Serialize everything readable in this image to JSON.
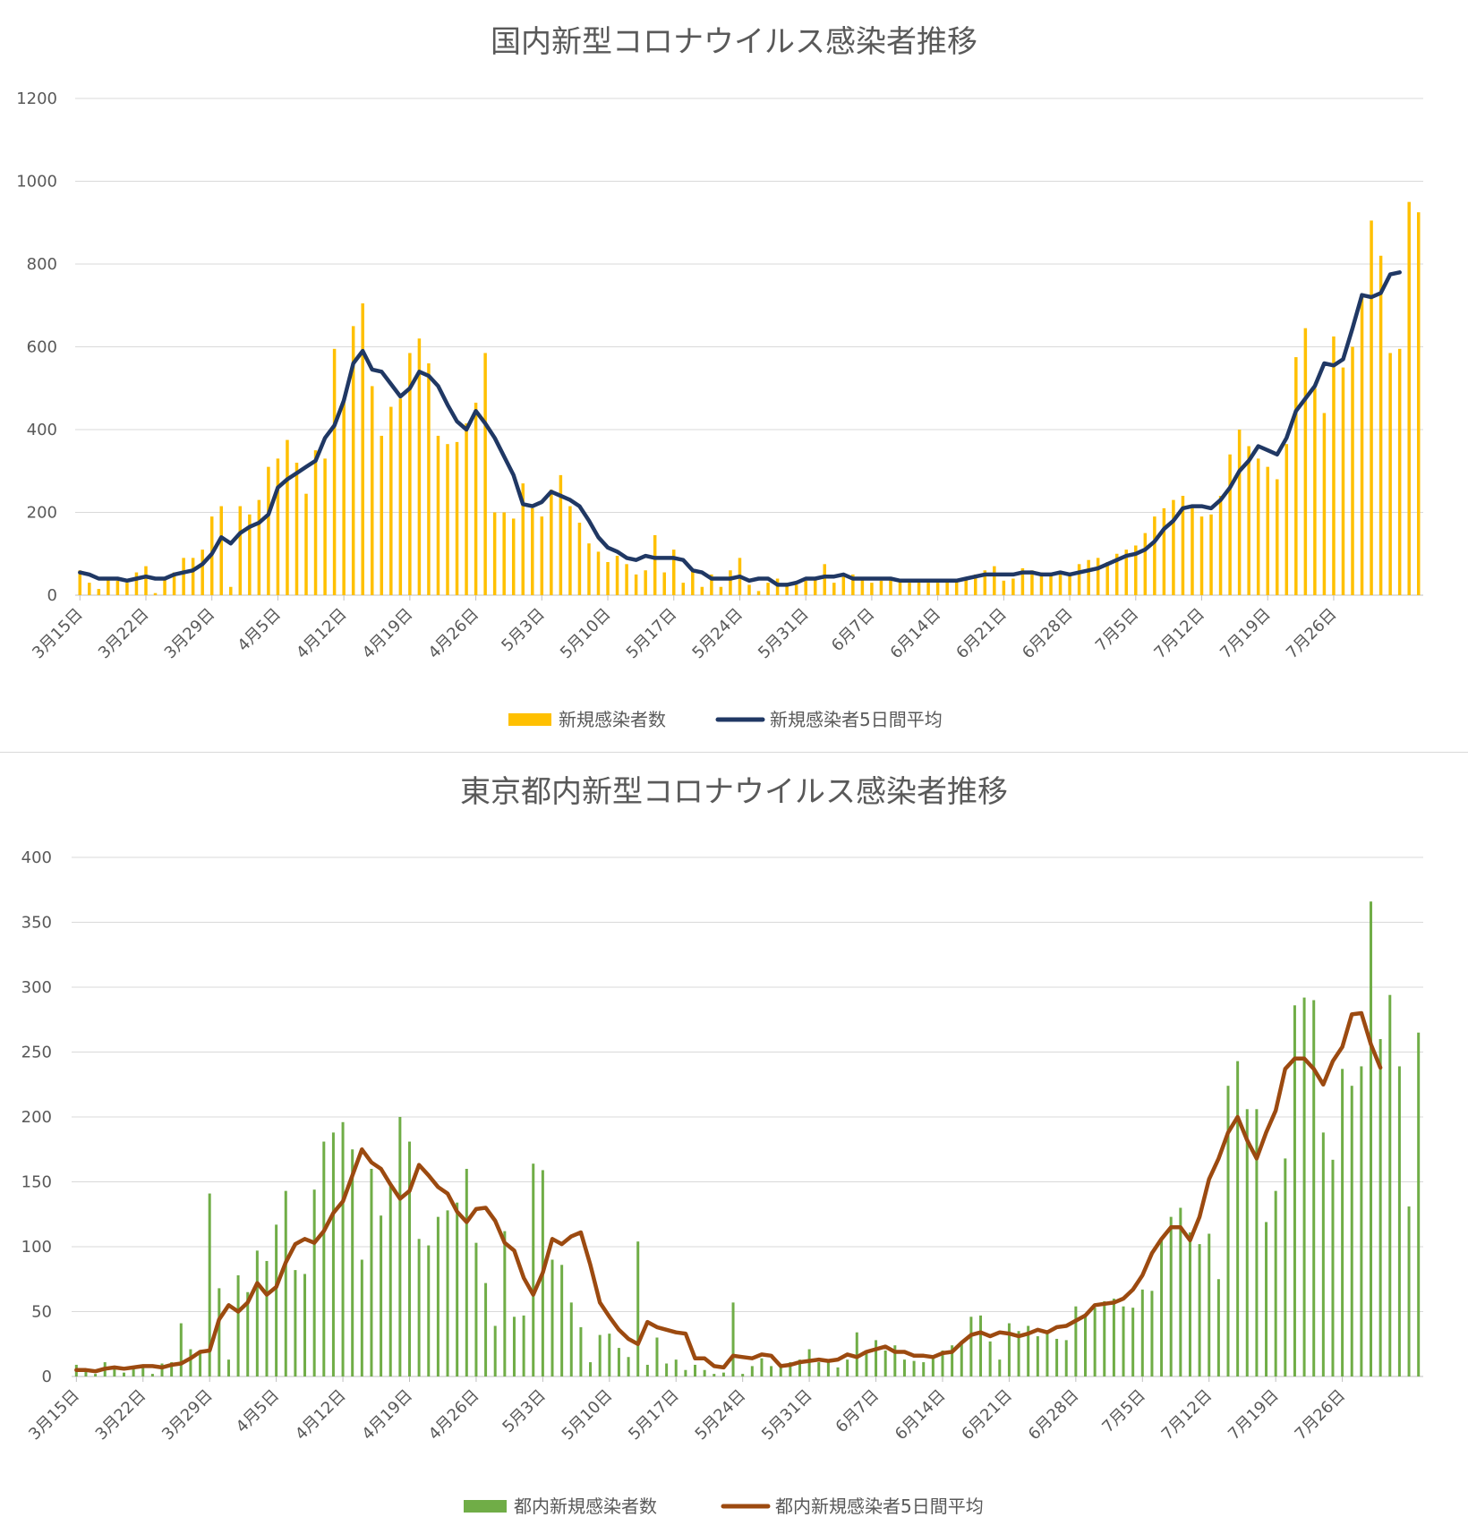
{
  "chart_data": [
    {
      "type": "bar+line",
      "title": "国内新型コロナウイルス感染者推移",
      "xlabel": "",
      "ylabel": "",
      "ylim": [
        0,
        1200
      ],
      "yticks": [
        "0",
        "200",
        "400",
        "600",
        "800",
        "1000",
        "1200"
      ],
      "xtick_labels": [
        "3月15日",
        "3月22日",
        "3月29日",
        "4月5日",
        "4月12日",
        "4月19日",
        "4月26日",
        "5月3日",
        "5月10日",
        "5月17日",
        "5月24日",
        "5月31日",
        "6月7日",
        "6月14日",
        "6月21日",
        "6月28日",
        "7月5日",
        "7月12日",
        "7月19日",
        "7月26日"
      ],
      "grid": true,
      "legend_position": "bottom",
      "bar_color": "#FFC000",
      "line_color": "#203864",
      "series": [
        {
          "name": "新規感染者数",
          "kind": "bar",
          "values": [
            60,
            30,
            15,
            40,
            35,
            30,
            55,
            70,
            5,
            40,
            55,
            90,
            90,
            110,
            190,
            215,
            20,
            215,
            195,
            230,
            310,
            330,
            375,
            320,
            245,
            350,
            330,
            595,
            475,
            650,
            705,
            505,
            385,
            455,
            475,
            585,
            620,
            560,
            385,
            365,
            370,
            415,
            465,
            585,
            200,
            200,
            185,
            270,
            210,
            190,
            255,
            290,
            215,
            175,
            125,
            105,
            80,
            95,
            75,
            50,
            60,
            145,
            55,
            110,
            30,
            60,
            20,
            50,
            20,
            60,
            90,
            25,
            10,
            30,
            40,
            30,
            25,
            35,
            40,
            75,
            30,
            45,
            50,
            40,
            30,
            35,
            40,
            35,
            30,
            35,
            30,
            30,
            35,
            35,
            40,
            50,
            60,
            70,
            35,
            40,
            65,
            60,
            55,
            50,
            55,
            55,
            75,
            85,
            90,
            80,
            100,
            110,
            120,
            150,
            190,
            210,
            230,
            240,
            215,
            190,
            195,
            240,
            340,
            400,
            360,
            330,
            310,
            280,
            365,
            575,
            645,
            500,
            440,
            625,
            550,
            600,
            720,
            905,
            820,
            585,
            595,
            950,
            925
          ]
        },
        {
          "name": "新規感染者5日間平均",
          "kind": "line",
          "values": [
            55,
            50,
            40,
            40,
            40,
            35,
            40,
            45,
            40,
            40,
            50,
            55,
            60,
            75,
            100,
            140,
            125,
            150,
            165,
            175,
            195,
            260,
            280,
            295,
            310,
            325,
            380,
            410,
            470,
            560,
            590,
            545,
            540,
            510,
            480,
            500,
            540,
            530,
            505,
            460,
            420,
            400,
            445,
            415,
            380,
            335,
            290,
            220,
            215,
            225,
            250,
            240,
            230,
            215,
            180,
            140,
            115,
            105,
            90,
            85,
            95,
            90,
            90,
            90,
            85,
            60,
            55,
            40,
            40,
            40,
            45,
            35,
            40,
            40,
            25,
            25,
            30,
            40,
            40,
            45,
            45,
            50,
            40,
            40,
            40,
            40,
            40,
            35,
            35,
            35,
            35,
            35,
            35,
            35,
            40,
            45,
            50,
            50,
            50,
            50,
            55,
            55,
            50,
            50,
            55,
            50,
            55,
            60,
            65,
            75,
            85,
            95,
            100,
            110,
            130,
            160,
            180,
            210,
            215,
            215,
            210,
            230,
            260,
            300,
            325,
            360,
            350,
            340,
            380,
            445,
            475,
            505,
            560,
            555,
            570,
            645,
            725,
            720,
            730,
            775,
            780
          ]
        }
      ]
    },
    {
      "type": "bar+line",
      "title": "東京都内新型コロナウイルス感染者推移",
      "xlabel": "",
      "ylabel": "",
      "ylim": [
        0,
        400
      ],
      "yticks": [
        "0",
        "50",
        "100",
        "150",
        "200",
        "250",
        "300",
        "350",
        "400"
      ],
      "xtick_labels": [
        "3月15日",
        "3月22日",
        "3月29日",
        "4月5日",
        "4月12日",
        "4月19日",
        "4月26日",
        "5月3日",
        "5月10日",
        "5月17日",
        "5月24日",
        "5月31日",
        "6月7日",
        "6月14日",
        "6月21日",
        "6月28日",
        "7月5日",
        "7月12日",
        "7月19日",
        "7月26日"
      ],
      "grid": true,
      "legend_position": "bottom",
      "bar_color": "#70AD47",
      "line_color": "#9C4A10",
      "series": [
        {
          "name": "都内新規感染者数",
          "kind": "bar",
          "values": [
            9,
            5,
            2,
            11,
            8,
            3,
            7,
            7,
            2,
            10,
            11,
            41,
            21,
            18,
            141,
            68,
            13,
            78,
            65,
            97,
            89,
            117,
            143,
            82,
            79,
            144,
            181,
            188,
            196,
            175,
            90,
            160,
            124,
            147,
            200,
            181,
            106,
            101,
            123,
            128,
            134,
            160,
            103,
            72,
            39,
            112,
            46,
            47,
            164,
            159,
            90,
            86,
            57,
            38,
            11,
            32,
            33,
            22,
            15,
            104,
            9,
            30,
            10,
            13,
            5,
            9,
            5,
            2,
            3,
            57,
            2,
            8,
            14,
            8,
            8,
            11,
            13,
            21,
            11,
            12,
            7,
            13,
            34,
            20,
            28,
            20,
            24,
            13,
            12,
            11,
            14,
            20,
            24,
            27,
            46,
            47,
            27,
            13,
            41,
            35,
            39,
            31,
            35,
            29,
            28,
            54,
            48,
            53,
            58,
            60,
            54,
            53,
            67,
            66,
            106,
            123,
            130,
            111,
            102,
            110,
            75,
            224,
            243,
            206,
            206,
            119,
            143,
            168,
            286,
            292,
            290,
            188,
            167,
            237,
            224,
            239,
            366,
            260,
            294,
            239,
            131,
            265
          ]
        },
        {
          "name": "都内新規感染者5日間平均",
          "kind": "line",
          "values": [
            5,
            5,
            4,
            6,
            7,
            6,
            7,
            8,
            8,
            7,
            9,
            10,
            14,
            19,
            20,
            44,
            55,
            50,
            57,
            72,
            63,
            69,
            88,
            102,
            106,
            103,
            112,
            126,
            135,
            155,
            175,
            165,
            160,
            148,
            137,
            143,
            163,
            155,
            146,
            141,
            127,
            119,
            129,
            130,
            120,
            103,
            97,
            76,
            63,
            80,
            106,
            102,
            108,
            111,
            86,
            57,
            46,
            36,
            29,
            25,
            42,
            38,
            36,
            34,
            33,
            14,
            14,
            8,
            7,
            16,
            15,
            14,
            17,
            16,
            8,
            9,
            11,
            12,
            13,
            12,
            13,
            17,
            15,
            19,
            21,
            23,
            19,
            19,
            16,
            16,
            15,
            18,
            19,
            26,
            32,
            34,
            31,
            34,
            33,
            31,
            33,
            36,
            34,
            38,
            39,
            43,
            47,
            55,
            56,
            57,
            60,
            67,
            78,
            95,
            106,
            115,
            115,
            105,
            123,
            152,
            168,
            188,
            200,
            182,
            168,
            188,
            205,
            237,
            245,
            245,
            237,
            225,
            243,
            254,
            279,
            280,
            256,
            238
          ]
        }
      ]
    }
  ]
}
